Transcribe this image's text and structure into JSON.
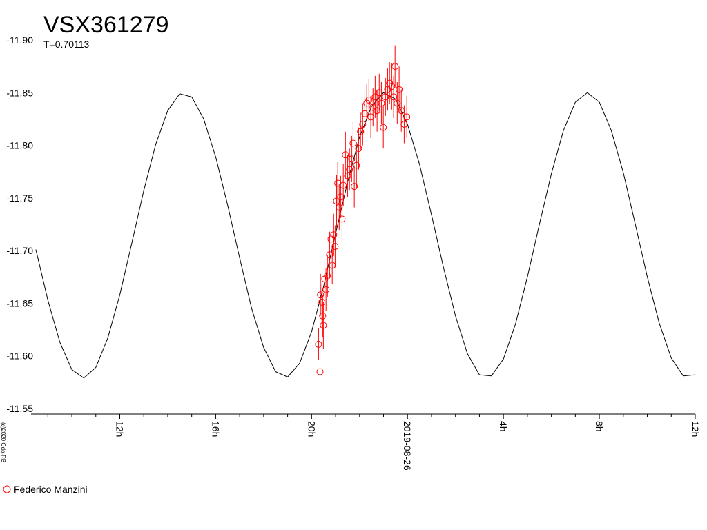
{
  "chart_data": {
    "type": "scatter",
    "title": "VSX361279",
    "subtitle": "T=0.70113",
    "credit": "(c)2020 Odo-RB",
    "xlim": [
      -15.7,
      12
    ],
    "xticks": [
      {
        "value": -12,
        "label": "12h"
      },
      {
        "value": -8,
        "label": "16h"
      },
      {
        "value": -4,
        "label": "20h"
      },
      {
        "value": 0,
        "label": "2019-08-26"
      },
      {
        "value": 4,
        "label": "4h"
      },
      {
        "value": 8,
        "label": "8h"
      },
      {
        "value": 12,
        "label": "12h"
      }
    ],
    "xminorticks": [
      -15,
      -14,
      -13,
      -11,
      -10,
      -9,
      -7,
      -6,
      -5,
      -3,
      -2,
      -1,
      1,
      2,
      3,
      5,
      6,
      7,
      9,
      10,
      11
    ],
    "ylim": [
      -11.55,
      -11.9
    ],
    "yticks": [
      {
        "value": -11.9,
        "label": "-11.90"
      },
      -11.85,
      {
        "value": -11.8,
        "label": "-11.80"
      },
      -11.75,
      {
        "value": -11.7,
        "label": "-11.70"
      },
      -11.65,
      {
        "value": -11.6,
        "label": "-11.60"
      },
      -11.55
    ],
    "model": {
      "color": "#000000",
      "x": [
        -15.5,
        -15,
        -14.5,
        -14,
        -13.5,
        -13,
        -12.5,
        -12,
        -11.5,
        -11,
        -10.5,
        -10,
        -9.5,
        -9,
        -8.5,
        -8,
        -7.5,
        -7,
        -6.5,
        -6,
        -5.5,
        -5,
        -4.5,
        -4,
        -3.5,
        -3,
        -2.5,
        -2,
        -1.5,
        -1,
        -0.5,
        0,
        0.5,
        1,
        1.5,
        2,
        2.5,
        3,
        3.5,
        4,
        4.5,
        5,
        5.5,
        6,
        6.5,
        7,
        7.5,
        8,
        8.5,
        9,
        9.5,
        10,
        10.5,
        11,
        11.5,
        12
      ],
      "values": [
        -11.701,
        -11.653,
        -11.613,
        -11.587,
        -11.579,
        -11.589,
        -11.617,
        -11.658,
        -11.707,
        -11.757,
        -11.801,
        -11.833,
        -11.849,
        -11.846,
        -11.825,
        -11.789,
        -11.743,
        -11.693,
        -11.645,
        -11.608,
        -11.585,
        -11.58,
        -11.593,
        -11.623,
        -11.666,
        -11.716,
        -11.765,
        -11.808,
        -11.837,
        -11.85,
        -11.844,
        -11.82,
        -11.782,
        -11.734,
        -11.684,
        -11.638,
        -11.602,
        -11.582,
        -11.581,
        -11.597,
        -11.63,
        -11.675,
        -11.725,
        -11.773,
        -11.814,
        -11.841,
        -11.85,
        -11.841,
        -11.814,
        -11.774,
        -11.725,
        -11.675,
        -11.631,
        -11.598,
        -11.581,
        -11.582
      ]
    },
    "series": [
      {
        "name": "Federico Manzini",
        "color": "#ff0000",
        "x": [
          -3.71,
          -3.65,
          -3.63,
          -3.57,
          -3.54,
          -3.51,
          -3.45,
          -3.4,
          -3.34,
          -3.25,
          -3.19,
          -3.14,
          -3.08,
          -3.02,
          -2.96,
          -2.91,
          -2.85,
          -2.79,
          -2.73,
          -2.68,
          -2.59,
          -2.5,
          -2.42,
          -2.33,
          -2.27,
          -2.22,
          -2.13,
          -2.04,
          -1.96,
          -1.87,
          -1.78,
          -1.7,
          -1.61,
          -1.53,
          -1.44,
          -1.35,
          -1.27,
          -1.18,
          -1.09,
          -1.01,
          -0.92,
          -0.83,
          -0.75,
          -0.66,
          -0.58,
          -0.52,
          -0.43,
          -0.35,
          -0.26,
          -0.14,
          -0.03
        ],
        "values": [
          -11.611,
          -11.585,
          -11.658,
          -11.651,
          -11.638,
          -11.629,
          -11.673,
          -11.663,
          -11.676,
          -11.696,
          -11.711,
          -11.686,
          -11.715,
          -11.704,
          -11.747,
          -11.764,
          -11.741,
          -11.751,
          -11.73,
          -11.762,
          -11.791,
          -11.771,
          -11.777,
          -11.787,
          -11.802,
          -11.761,
          -11.781,
          -11.797,
          -11.813,
          -11.82,
          -11.83,
          -11.84,
          -11.843,
          -11.827,
          -11.836,
          -11.846,
          -11.833,
          -11.85,
          -11.84,
          -11.817,
          -11.846,
          -11.853,
          -11.859,
          -11.856,
          -11.846,
          -11.875,
          -11.84,
          -11.853,
          -11.833,
          -11.82,
          -11.827
        ],
        "errors": [
          0.015,
          0.02,
          0.02,
          0.018,
          0.02,
          0.022,
          0.018,
          0.02,
          0.02,
          0.022,
          0.02,
          0.018,
          0.02,
          0.02,
          0.025,
          0.02,
          0.022,
          0.02,
          0.022,
          0.02,
          0.022,
          0.02,
          0.02,
          0.022,
          0.02,
          0.02,
          0.022,
          0.02,
          0.018,
          0.02,
          0.02,
          0.018,
          0.02,
          0.02,
          0.018,
          0.02,
          0.02,
          0.018,
          0.02,
          0.02,
          0.018,
          0.02,
          0.02,
          0.022,
          0.02,
          0.02,
          0.02,
          0.022,
          0.02,
          0.018,
          0.02
        ]
      }
    ]
  }
}
